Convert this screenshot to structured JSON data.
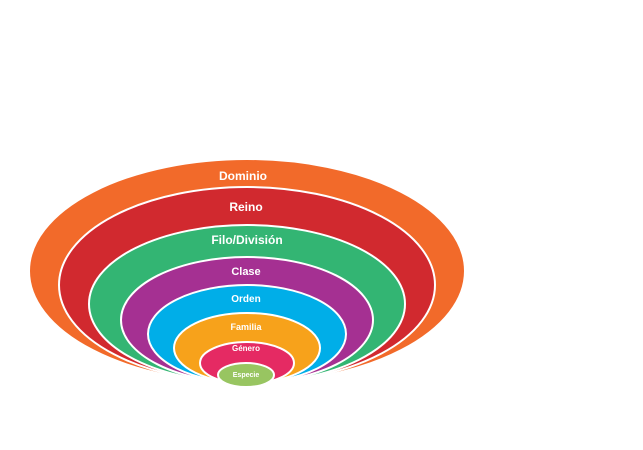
{
  "diagram": {
    "levels": [
      {
        "label": "Dominio",
        "color": "#f26a2a"
      },
      {
        "label": "Reino",
        "color": "#d1292f"
      },
      {
        "label": "Filo/División",
        "color": "#33b573"
      },
      {
        "label": "Clase",
        "color": "#a53092"
      },
      {
        "label": "Orden",
        "color": "#00aee8"
      },
      {
        "label": "Familia",
        "color": "#f7a21b"
      },
      {
        "label": "Género",
        "color": "#e52a63"
      },
      {
        "label": "Especie",
        "color": "#98c561"
      }
    ],
    "outline_color": "#ffffff"
  }
}
